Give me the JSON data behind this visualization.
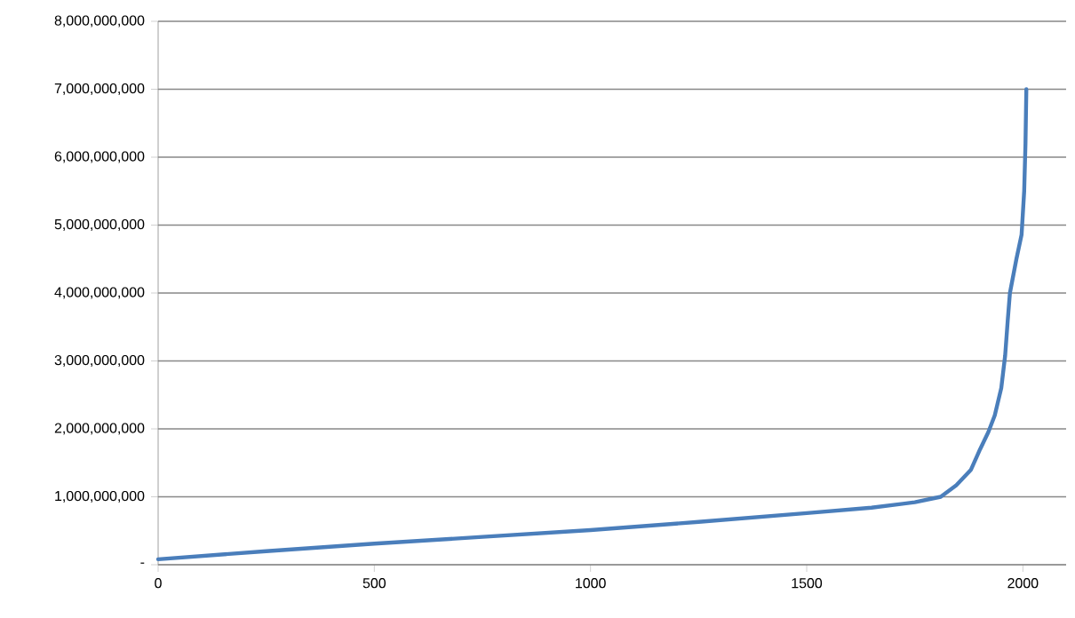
{
  "chart_data": {
    "type": "line",
    "x": [
      0,
      250,
      500,
      750,
      1000,
      1250,
      1500,
      1650,
      1750,
      1810,
      1846,
      1880,
      1901,
      1920,
      1935,
      1950,
      1959,
      1965,
      1970,
      1985,
      1997,
      2003,
      2006,
      2008
    ],
    "series": [
      {
        "color": "#4a7ebb",
        "values": [
          80000000,
          200000000,
          310000000,
          410000000,
          510000000,
          630000000,
          760000000,
          840000000,
          920000000,
          1000000000,
          1170000000,
          1400000000,
          1700000000,
          1950000000,
          2200000000,
          2600000000,
          3080000000,
          3600000000,
          4000000000,
          4500000000,
          4860000000,
          5500000000,
          6200000000,
          7000000000
        ]
      }
    ],
    "xlim": [
      0,
      2100
    ],
    "xticks": [
      0,
      500,
      1000,
      1500,
      2000
    ],
    "ylim": [
      0,
      8000000000
    ],
    "yticks": [
      {
        "value": 0,
        "label": "-"
      },
      {
        "value": 1000000000,
        "label": "1,000,000,000"
      },
      {
        "value": 2000000000,
        "label": "2,000,000,000"
      },
      {
        "value": 3000000000,
        "label": "3,000,000,000"
      },
      {
        "value": 4000000000,
        "label": "4,000,000,000"
      },
      {
        "value": 5000000000,
        "label": "5,000,000,000"
      },
      {
        "value": 6000000000,
        "label": "6,000,000,000"
      },
      {
        "value": 7000000000,
        "label": "7,000,000,000"
      },
      {
        "value": 8000000000,
        "label": "8,000,000,000"
      }
    ],
    "grid": "y",
    "marker": "none",
    "line_style": "solid"
  }
}
